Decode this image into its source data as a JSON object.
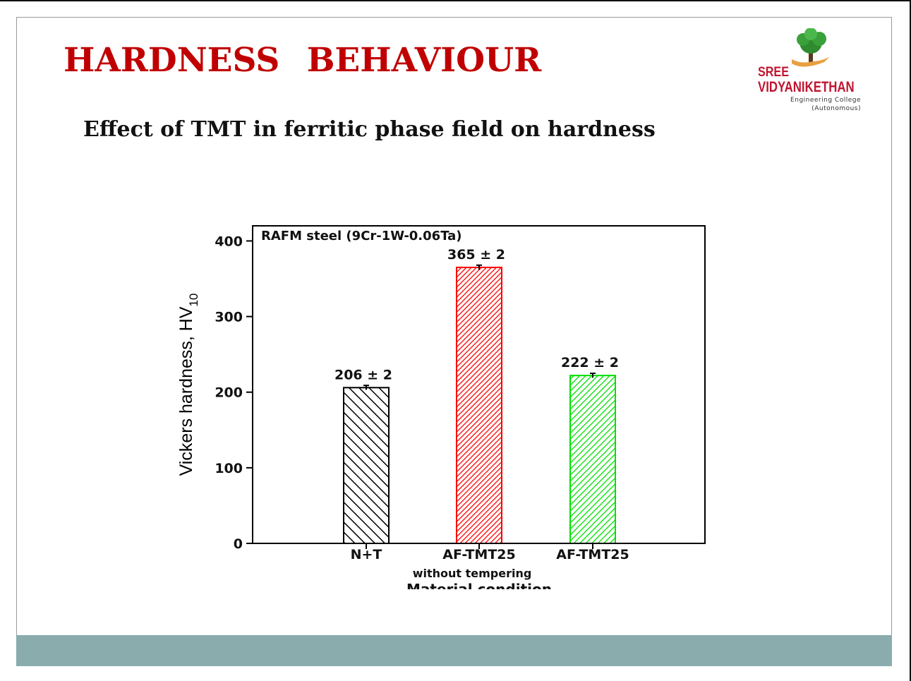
{
  "slide": {
    "title": "HARDNESS   BEHAVIOUR",
    "subtitle": "Effect of TMT in ferritic phase field on hardness"
  },
  "logo": {
    "icon": "tree-in-hand-icon",
    "line1": "SREE",
    "line2": "VIDYANIKETHAN",
    "line3": "Engineering College",
    "line4": "(Autonomous)"
  },
  "colors": {
    "title": "#c00000",
    "footer": "#8aacac",
    "bar_black": "#000000",
    "bar_red": "#ff0000",
    "bar_green": "#00e000"
  },
  "chart_data": {
    "type": "bar",
    "title": "RAFM steel (9Cr-1W-0.06Ta)",
    "ylabel": "Vickers hardness, HV",
    "ylabel_subscript": "10",
    "xlabel": "Material condition",
    "ylim": [
      0,
      420
    ],
    "yticks": [
      0,
      100,
      200,
      300,
      400
    ],
    "categories": [
      "N+T",
      "AF-TMT25",
      "AF-TMT25"
    ],
    "category_sublabels": [
      "",
      "without tempering",
      ""
    ],
    "values": [
      206,
      365,
      222
    ],
    "errors": [
      2,
      2,
      2
    ],
    "data_labels": [
      "206 ± 2",
      "365 ± 2",
      "222 ± 2"
    ],
    "bar_colors": [
      "#000000",
      "#ff0000",
      "#00e000"
    ],
    "hatch": "diagonal"
  }
}
